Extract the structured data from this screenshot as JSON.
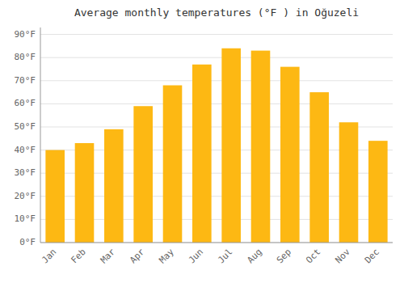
{
  "chart_data": {
    "type": "bar",
    "title": "Average monthly temperatures (°F ) in Oğuzeli",
    "categories": [
      "Jan",
      "Feb",
      "Mar",
      "Apr",
      "May",
      "Jun",
      "Jul",
      "Aug",
      "Sep",
      "Oct",
      "Nov",
      "Dec"
    ],
    "values": [
      40,
      43,
      49,
      59,
      68,
      77,
      84,
      83,
      76,
      65,
      52,
      44
    ],
    "color": "#FDB813",
    "ylim": [
      0,
      93
    ],
    "yticks": [
      {
        "value": 0,
        "label": "0°F"
      },
      {
        "value": 10,
        "label": "10°F"
      },
      {
        "value": 20,
        "label": "20°F"
      },
      {
        "value": 30,
        "label": "30°F"
      },
      {
        "value": 40,
        "label": "40°F"
      },
      {
        "value": 50,
        "label": "50°F"
      },
      {
        "value": 60,
        "label": "60°F"
      },
      {
        "value": 70,
        "label": "70°F"
      },
      {
        "value": 80,
        "label": "80°F"
      },
      {
        "value": 90,
        "label": "90°F"
      }
    ],
    "grid": true
  }
}
